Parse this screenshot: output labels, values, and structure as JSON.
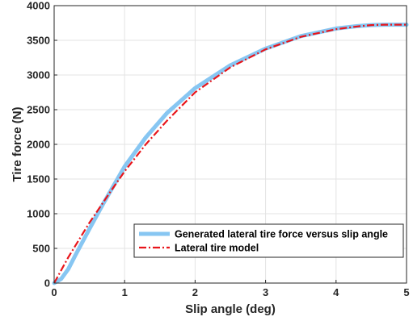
{
  "chart_data": {
    "type": "line",
    "title": "",
    "xlabel": "Slip angle (deg)",
    "ylabel": "Tire force (N)",
    "xlim": [
      0,
      5
    ],
    "ylim": [
      0,
      4000
    ],
    "xticks": [
      0,
      1,
      2,
      3,
      4,
      5
    ],
    "yticks": [
      0,
      500,
      1000,
      1500,
      2000,
      2500,
      3000,
      3500,
      4000
    ],
    "grid": true,
    "legend_position": "bottom-right",
    "series": [
      {
        "name": "Generated lateral tire force versus slip angle",
        "color": "#87c6f2",
        "style": "solid-thick",
        "x": [
          0,
          0.1,
          0.2,
          0.3,
          0.5,
          0.7,
          1.0,
          1.3,
          1.6,
          2.0,
          2.5,
          3.0,
          3.5,
          4.0,
          4.3,
          4.5,
          4.7,
          5.0
        ],
        "y": [
          0,
          60,
          200,
          400,
          780,
          1150,
          1680,
          2100,
          2450,
          2810,
          3140,
          3380,
          3560,
          3670,
          3705,
          3720,
          3725,
          3725
        ]
      },
      {
        "name": "Lateral tire model",
        "color": "#e8151b",
        "style": "dash-dot",
        "x": [
          0,
          0.2,
          0.5,
          0.8,
          1.0,
          1.3,
          1.6,
          2.0,
          2.5,
          3.0,
          3.5,
          4.0,
          4.3,
          4.5,
          4.7,
          5.0
        ],
        "y": [
          0,
          370,
          870,
          1320,
          1610,
          2000,
          2340,
          2750,
          3110,
          3370,
          3550,
          3660,
          3700,
          3720,
          3725,
          3725
        ]
      }
    ]
  }
}
